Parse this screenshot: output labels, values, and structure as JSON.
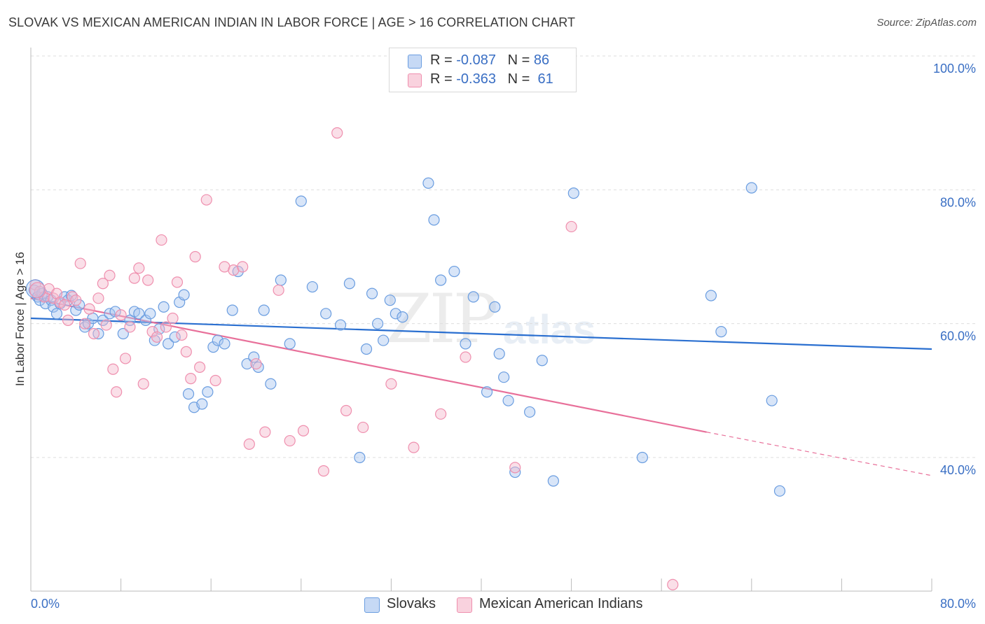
{
  "title": "SLOVAK VS MEXICAN AMERICAN INDIAN IN LABOR FORCE | AGE > 16 CORRELATION CHART",
  "source": "Source: ZipAtlas.com",
  "watermark": {
    "zip": "ZIP",
    "atlas": "atlas"
  },
  "legend": {
    "rows": [
      {
        "r_label": "R = ",
        "r_value": "-0.087",
        "n_label": "N = ",
        "n_value": "86",
        "color": "#a9c6ef"
      },
      {
        "r_label": "R = ",
        "r_value": "-0.363",
        "n_label": "N = ",
        "n_value": " 61",
        "color": "#f5b8cb"
      }
    ]
  },
  "bottom_legend": [
    {
      "label": "Slovaks",
      "color": "#a9c6ef"
    },
    {
      "label": "Mexican American Indians",
      "color": "#f5b8cb"
    }
  ],
  "chart_data": {
    "type": "scatter",
    "title": "SLOVAK VS MEXICAN AMERICAN INDIAN IN LABOR FORCE | AGE > 16 CORRELATION CHART",
    "xlabel": "",
    "ylabel": "In Labor Force | Age > 16",
    "xlim": [
      0,
      80
    ],
    "ylim": [
      20,
      100
    ],
    "x_tick_labels": [
      "0.0%",
      "80.0%"
    ],
    "y_ticks": [
      40,
      60,
      80,
      100
    ],
    "y_tick_labels": [
      "40.0%",
      "60.0%",
      "80.0%",
      "100.0%"
    ],
    "grid": "horizontal dashed",
    "legend_placement": "top-center",
    "series": [
      {
        "name": "Slovaks",
        "color": "#6a9de0",
        "fill": "#a9c6ef",
        "trend": {
          "x": [
            0,
            80
          ],
          "y": [
            60.8,
            56.2
          ],
          "color": "#2a6fd0"
        },
        "points": [
          [
            0.3,
            65.0
          ],
          [
            0.6,
            64.0
          ],
          [
            0.8,
            63.5
          ],
          [
            1.0,
            64.5
          ],
          [
            1.3,
            63.0
          ],
          [
            1.5,
            64.0
          ],
          [
            1.8,
            63.5
          ],
          [
            2.0,
            62.5
          ],
          [
            2.3,
            61.5
          ],
          [
            2.6,
            63.0
          ],
          [
            3.0,
            64.0
          ],
          [
            3.3,
            63.5
          ],
          [
            3.6,
            64.2
          ],
          [
            4.0,
            62.0
          ],
          [
            4.3,
            62.8
          ],
          [
            4.8,
            59.5
          ],
          [
            5.1,
            60.0
          ],
          [
            5.5,
            60.8
          ],
          [
            6.0,
            58.5
          ],
          [
            6.4,
            60.5
          ],
          [
            7.0,
            61.5
          ],
          [
            7.5,
            61.8
          ],
          [
            8.2,
            58.5
          ],
          [
            8.8,
            60.5
          ],
          [
            9.2,
            61.8
          ],
          [
            9.6,
            61.5
          ],
          [
            10.2,
            60.5
          ],
          [
            10.6,
            61.5
          ],
          [
            11.0,
            57.5
          ],
          [
            11.4,
            59.2
          ],
          [
            11.8,
            62.5
          ],
          [
            12.2,
            57.0
          ],
          [
            12.8,
            58.0
          ],
          [
            13.2,
            63.2
          ],
          [
            13.6,
            64.3
          ],
          [
            14.0,
            49.5
          ],
          [
            14.5,
            47.5
          ],
          [
            15.2,
            48.0
          ],
          [
            15.7,
            49.8
          ],
          [
            16.2,
            56.5
          ],
          [
            16.6,
            57.5
          ],
          [
            17.2,
            57.0
          ],
          [
            17.9,
            62.0
          ],
          [
            18.4,
            67.8
          ],
          [
            19.2,
            54.0
          ],
          [
            19.8,
            55.0
          ],
          [
            20.2,
            53.5
          ],
          [
            20.7,
            62.0
          ],
          [
            21.3,
            51.0
          ],
          [
            22.2,
            66.5
          ],
          [
            23.0,
            57.0
          ],
          [
            24.0,
            78.3
          ],
          [
            25.0,
            65.5
          ],
          [
            26.2,
            61.5
          ],
          [
            27.5,
            59.8
          ],
          [
            28.3,
            66.0
          ],
          [
            29.2,
            40.0
          ],
          [
            29.8,
            56.2
          ],
          [
            30.3,
            64.5
          ],
          [
            30.8,
            60.0
          ],
          [
            31.3,
            57.5
          ],
          [
            31.9,
            63.5
          ],
          [
            32.4,
            61.5
          ],
          [
            33.0,
            61.0
          ],
          [
            35.3,
            81.0
          ],
          [
            35.8,
            75.5
          ],
          [
            36.4,
            66.5
          ],
          [
            37.6,
            67.8
          ],
          [
            38.6,
            57.0
          ],
          [
            39.3,
            64.0
          ],
          [
            40.5,
            49.8
          ],
          [
            41.2,
            62.5
          ],
          [
            41.6,
            55.5
          ],
          [
            42.0,
            52.0
          ],
          [
            42.4,
            48.5
          ],
          [
            43.0,
            37.8
          ],
          [
            44.3,
            46.8
          ],
          [
            45.4,
            54.5
          ],
          [
            46.4,
            36.5
          ],
          [
            48.2,
            79.5
          ],
          [
            54.3,
            40.0
          ],
          [
            60.4,
            64.2
          ],
          [
            61.3,
            58.8
          ],
          [
            64.0,
            80.3
          ],
          [
            65.8,
            48.5
          ],
          [
            66.5,
            35.0
          ]
        ]
      },
      {
        "name": "Mexican American Indians",
        "color": "#ef8fae",
        "fill": "#f5b8cb",
        "trend": {
          "x": [
            0,
            60
          ],
          "y": [
            63.8,
            43.8
          ],
          "dashed_to": {
            "x": 80,
            "y": 37.3
          },
          "color": "#e8709a"
        },
        "points": [
          [
            0.4,
            65.8
          ],
          [
            0.8,
            64.8
          ],
          [
            1.2,
            64.0
          ],
          [
            1.6,
            65.2
          ],
          [
            2.0,
            63.8
          ],
          [
            2.3,
            64.5
          ],
          [
            2.6,
            63.2
          ],
          [
            3.0,
            62.8
          ],
          [
            3.3,
            60.5
          ],
          [
            3.7,
            64.0
          ],
          [
            4.0,
            63.5
          ],
          [
            4.4,
            69.0
          ],
          [
            4.8,
            60.0
          ],
          [
            5.2,
            62.2
          ],
          [
            5.6,
            58.5
          ],
          [
            6.0,
            63.8
          ],
          [
            6.4,
            66.0
          ],
          [
            6.7,
            59.8
          ],
          [
            7.0,
            67.2
          ],
          [
            7.3,
            53.2
          ],
          [
            7.6,
            49.8
          ],
          [
            8.0,
            61.3
          ],
          [
            8.4,
            54.8
          ],
          [
            8.8,
            59.5
          ],
          [
            9.2,
            66.8
          ],
          [
            9.6,
            68.3
          ],
          [
            10.0,
            51.0
          ],
          [
            10.4,
            66.5
          ],
          [
            10.8,
            58.8
          ],
          [
            11.2,
            58.0
          ],
          [
            11.6,
            72.5
          ],
          [
            12.0,
            59.5
          ],
          [
            12.6,
            60.8
          ],
          [
            13.0,
            66.2
          ],
          [
            13.4,
            58.3
          ],
          [
            13.8,
            55.8
          ],
          [
            14.2,
            51.8
          ],
          [
            14.6,
            70.0
          ],
          [
            15.0,
            53.5
          ],
          [
            15.6,
            78.5
          ],
          [
            16.4,
            51.5
          ],
          [
            17.2,
            68.5
          ],
          [
            18.0,
            68.0
          ],
          [
            18.8,
            68.5
          ],
          [
            19.4,
            42.0
          ],
          [
            20.0,
            54.0
          ],
          [
            20.8,
            43.8
          ],
          [
            22.0,
            65.0
          ],
          [
            23.0,
            42.5
          ],
          [
            24.2,
            44.0
          ],
          [
            26.0,
            38.0
          ],
          [
            27.2,
            88.5
          ],
          [
            28.0,
            47.0
          ],
          [
            29.5,
            44.5
          ],
          [
            32.0,
            51.0
          ],
          [
            34.0,
            41.5
          ],
          [
            36.4,
            46.5
          ],
          [
            38.6,
            55.0
          ],
          [
            43.0,
            38.5
          ],
          [
            48.0,
            74.5
          ],
          [
            57.0,
            21.0
          ]
        ]
      }
    ]
  }
}
